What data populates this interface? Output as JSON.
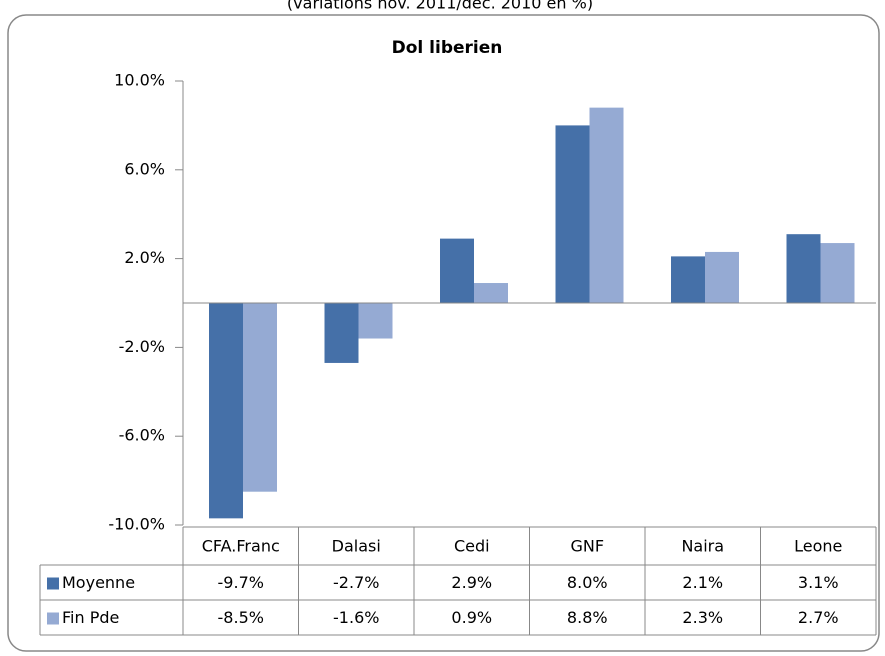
{
  "chart_data": {
    "type": "bar",
    "subtitle": "(variations nov. 2011/dec. 2010 en %)",
    "title": "Dol liberien",
    "categories": [
      "CFA.Franc",
      "Dalasi",
      "Cedi",
      "GNF",
      "Naira",
      "Leone"
    ],
    "series": [
      {
        "name": "Moyenne",
        "color": "#4570a8",
        "values": [
          -9.7,
          -2.7,
          2.9,
          8.0,
          2.1,
          3.1
        ],
        "value_labels": [
          "-9.7%",
          "-2.7%",
          "2.9%",
          "8.0%",
          "2.1%",
          "3.1%"
        ]
      },
      {
        "name": "Fin Pde",
        "color": "#95aad3",
        "values": [
          -8.5,
          -1.6,
          0.9,
          8.8,
          2.3,
          2.7
        ],
        "value_labels": [
          "-8.5%",
          "-1.6%",
          "0.9%",
          "8.8%",
          "2.3%",
          "2.7%"
        ]
      }
    ],
    "ylim": [
      -10,
      10
    ],
    "yticks": [
      {
        "value": 10,
        "label": "10.0%"
      },
      {
        "value": 6,
        "label": "6.0%"
      },
      {
        "value": 2,
        "label": "2.0%"
      },
      {
        "value": -2,
        "label": "-2.0%"
      },
      {
        "value": -6,
        "label": "-6.0%"
      },
      {
        "value": -10,
        "label": "-10.0%"
      }
    ],
    "data_table": true
  }
}
